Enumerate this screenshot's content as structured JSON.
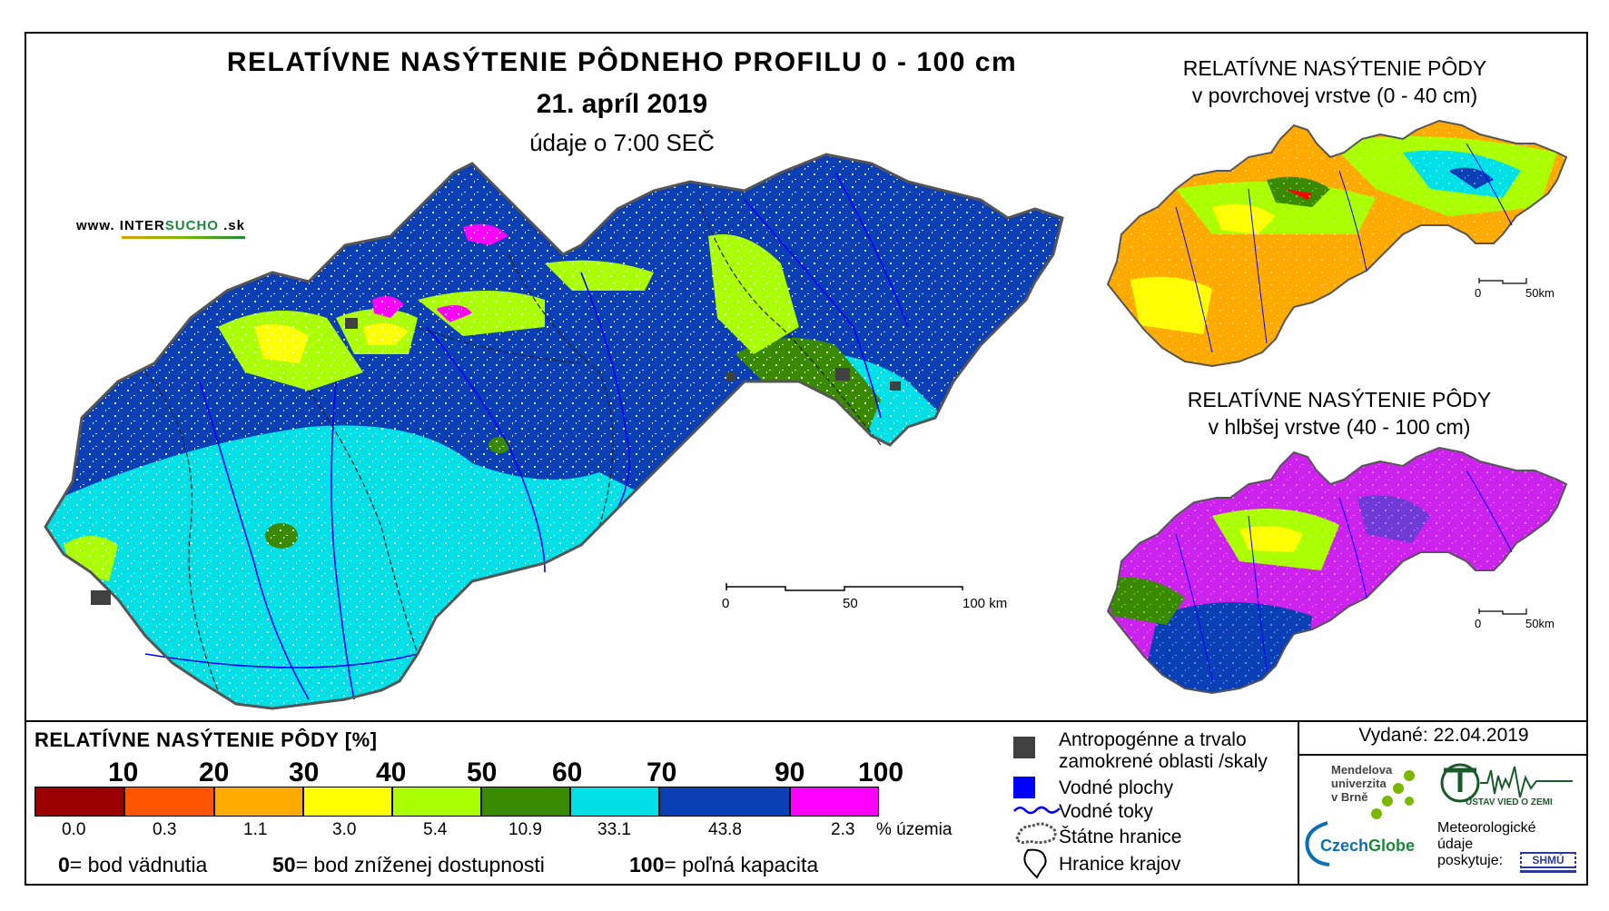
{
  "title": {
    "main": "RELATÍVNE NASÝTENIE PÔDNEHO PROFILU 0 - 100 cm",
    "date": "21. apríl 2019",
    "subtitle": "údaje o 7:00 SEČ"
  },
  "website": {
    "prefix": "www.",
    "brand_a": "INTER",
    "brand_b": "SUCHO",
    "suffix": ".sk"
  },
  "maps": {
    "main": {
      "scale_labels": [
        "0",
        "50",
        "100 km"
      ]
    },
    "surface": {
      "title_line1": "RELATÍVNE NASÝTENIE PÔDY",
      "title_line2": "v povrchovej vrstve (0 - 40 cm)",
      "scale_labels": [
        "0",
        "50km"
      ]
    },
    "deep": {
      "title_line1": "RELATÍVNE NASÝTENIE PÔDY",
      "title_line2": "v hlbšej vrstve (40 - 100 cm)",
      "scale_labels": [
        "0",
        "50km"
      ]
    }
  },
  "legend": {
    "title": "RELATÍVNE NASÝTENIE PÔDY [%]",
    "thresholds": [
      "10",
      "20",
      "30",
      "40",
      "50",
      "60",
      "70",
      "90",
      "100"
    ],
    "classes": [
      {
        "color": "#9b0000",
        "share": "0.0"
      },
      {
        "color": "#ff5500",
        "share": "0.3"
      },
      {
        "color": "#ffaa00",
        "share": "1.1"
      },
      {
        "color": "#ffff00",
        "share": "3.0"
      },
      {
        "color": "#aaff00",
        "share": "5.4"
      },
      {
        "color": "#3a8a00",
        "share": "10.9"
      },
      {
        "color": "#00e0e6",
        "share": "33.1"
      },
      {
        "color": "#0a3fb5",
        "share": "43.8"
      },
      {
        "color": "#ff00ff",
        "share": "2.3"
      }
    ],
    "share_unit": "% územia",
    "notes": [
      {
        "value": "0",
        "text": "= bod vädnutia"
      },
      {
        "value": "50",
        "text": "= bod zníženej dostupnosti"
      },
      {
        "value": "100",
        "text": "= poľná kapacita"
      }
    ]
  },
  "symbols": {
    "anthropogenic_line1": "Antropogénne a trvalo",
    "anthropogenic_line2": "zamokrené oblasti /skaly",
    "water_bodies": "Vodné plochy",
    "streams": "Vodné toky",
    "state_border": "Štátne hranice",
    "regions": "Hranice krajov",
    "colors": {
      "anthropogenic": "#404040",
      "water": "#0000ff",
      "streams": "#0000ff"
    }
  },
  "issued": "Vydané: 22.04.2019",
  "logos": {
    "mendel_line1": "Mendelova",
    "mendel_line2": "univerzita",
    "mendel_line3": "v Brně",
    "czechglobe_a": "Czech",
    "czechglobe_b": "Globe",
    "ustav": "ÚSTAV VIED O ZEMI",
    "meteo_line1": "Meteorologické",
    "meteo_line2": "údaje",
    "meteo_line3": "poskytuje:",
    "shmu": "SHMÚ"
  }
}
